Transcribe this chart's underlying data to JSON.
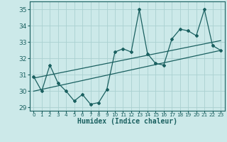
{
  "xlabel": "Humidex (Indice chaleur)",
  "ylabel": "",
  "bg_color": "#cce9e9",
  "line_color": "#1a6060",
  "grid_color": "#aad0d0",
  "x_values": [
    0,
    1,
    2,
    3,
    4,
    5,
    6,
    7,
    8,
    9,
    10,
    11,
    12,
    13,
    14,
    15,
    16,
    17,
    18,
    19,
    20,
    21,
    22,
    23
  ],
  "y_values": [
    30.9,
    30.0,
    31.6,
    30.5,
    30.0,
    29.4,
    29.8,
    29.2,
    29.3,
    30.1,
    32.4,
    32.6,
    32.4,
    35.0,
    32.3,
    31.7,
    31.6,
    33.2,
    33.8,
    33.7,
    33.4,
    35.0,
    32.8,
    32.5
  ],
  "trend1_x": [
    0,
    23
  ],
  "trend1_y": [
    30.8,
    33.1
  ],
  "trend2_x": [
    0,
    23
  ],
  "trend2_y": [
    30.0,
    32.5
  ],
  "ylim": [
    28.8,
    35.5
  ],
  "xlim": [
    -0.5,
    23.5
  ],
  "yticks": [
    29,
    30,
    31,
    32,
    33,
    34,
    35
  ],
  "xticks": [
    0,
    1,
    2,
    3,
    4,
    5,
    6,
    7,
    8,
    9,
    10,
    11,
    12,
    13,
    14,
    15,
    16,
    17,
    18,
    19,
    20,
    21,
    22,
    23
  ],
  "fig_width": 3.2,
  "fig_height": 2.0,
  "dpi": 100
}
